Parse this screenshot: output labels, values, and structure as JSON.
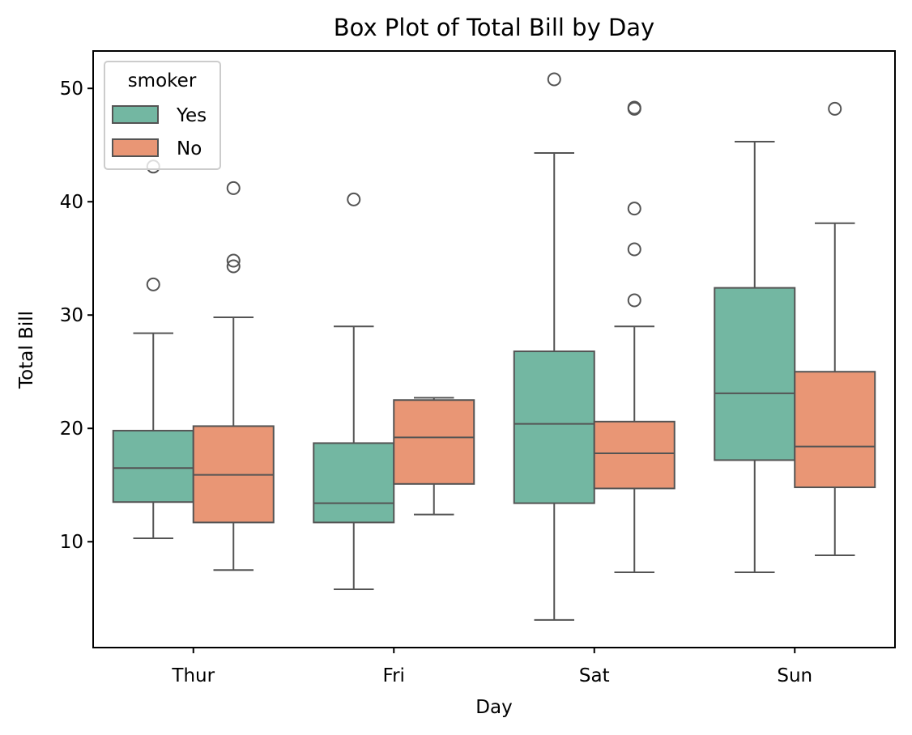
{
  "chart_data": {
    "type": "box",
    "title": "Box Plot of Total Bill by Day",
    "xlabel": "Day",
    "ylabel": "Total Bill",
    "categories": [
      "Thur",
      "Fri",
      "Sat",
      "Sun"
    ],
    "ylim": [
      0.66,
      53.3
    ],
    "yticks": [
      10,
      20,
      30,
      40,
      50
    ],
    "grid": false,
    "legend": {
      "title": "smoker",
      "placement": "upper-left"
    },
    "series": [
      {
        "name": "Yes",
        "color": "#73b7a2",
        "boxes": [
          {
            "category": "Thur",
            "whislo": 10.3,
            "q1": 13.5,
            "med": 16.5,
            "q3": 19.8,
            "whishi": 28.4,
            "fliers": [
              32.7,
              43.1
            ]
          },
          {
            "category": "Fri",
            "whislo": 5.8,
            "q1": 11.7,
            "med": 13.4,
            "q3": 18.7,
            "whishi": 29.0,
            "fliers": [
              40.2
            ]
          },
          {
            "category": "Sat",
            "whislo": 3.1,
            "q1": 13.4,
            "med": 20.4,
            "q3": 26.8,
            "whishi": 44.3,
            "fliers": [
              50.8
            ]
          },
          {
            "category": "Sun",
            "whislo": 7.3,
            "q1": 17.2,
            "med": 23.1,
            "q3": 32.4,
            "whishi": 45.3,
            "fliers": []
          }
        ]
      },
      {
        "name": "No",
        "color": "#e99675",
        "boxes": [
          {
            "category": "Thur",
            "whislo": 7.5,
            "q1": 11.7,
            "med": 15.9,
            "q3": 20.2,
            "whishi": 29.8,
            "fliers": [
              34.3,
              34.8,
              41.2
            ]
          },
          {
            "category": "Fri",
            "whislo": 12.4,
            "q1": 15.1,
            "med": 19.2,
            "q3": 22.5,
            "whishi": 22.7,
            "fliers": []
          },
          {
            "category": "Sat",
            "whislo": 7.3,
            "q1": 14.7,
            "med": 17.8,
            "q3": 20.6,
            "whishi": 29.0,
            "fliers": [
              31.3,
              35.8,
              39.4,
              48.2,
              48.3
            ]
          },
          {
            "category": "Sun",
            "whislo": 8.8,
            "q1": 14.8,
            "med": 18.4,
            "q3": 25.0,
            "whishi": 38.1,
            "fliers": [
              48.2
            ]
          }
        ]
      }
    ],
    "style": {
      "line_color": "#545454",
      "axis_color": "#000000"
    }
  }
}
